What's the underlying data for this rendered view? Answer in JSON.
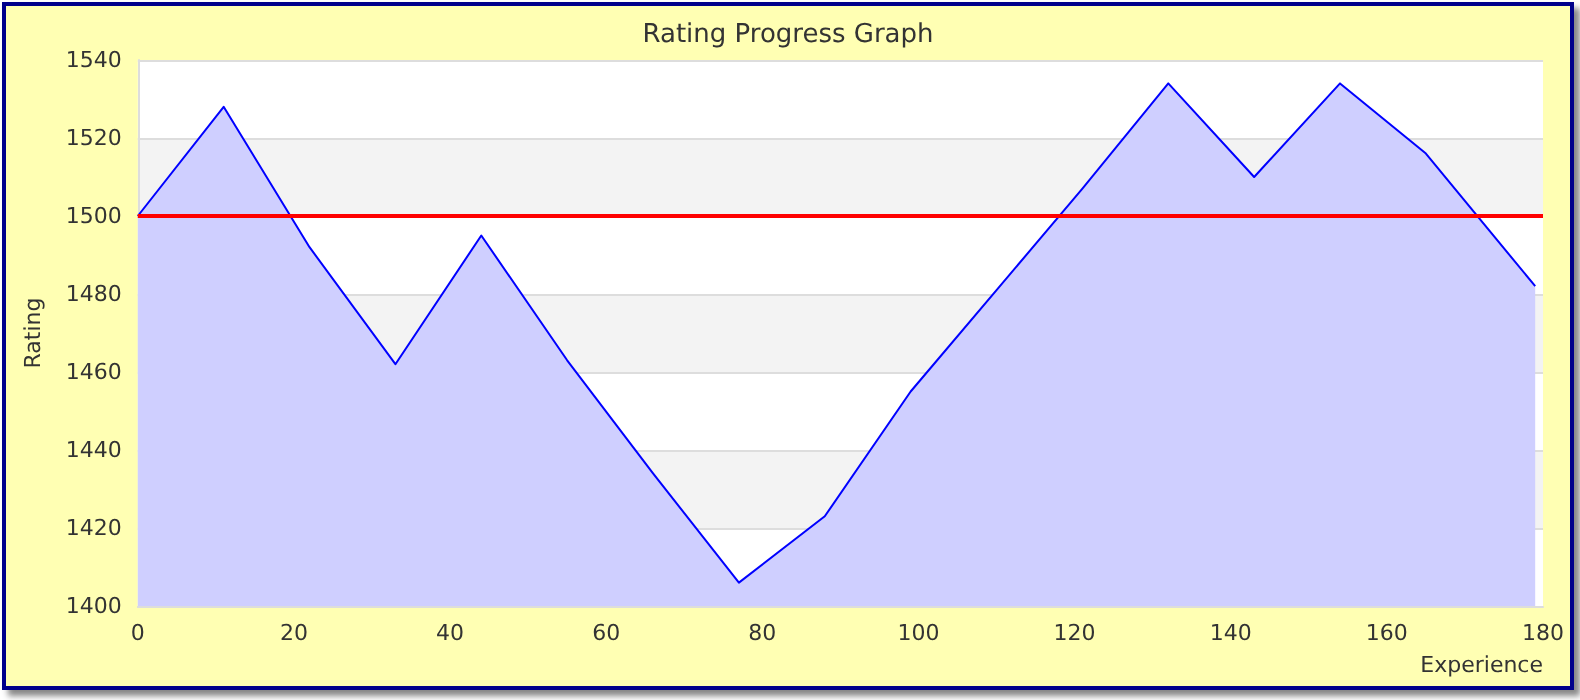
{
  "chart_data": {
    "type": "area",
    "title": "Rating Progress Graph",
    "xlabel": "Experience",
    "ylabel": "Rating",
    "x": [
      0,
      11,
      22,
      33,
      44,
      55,
      66,
      77,
      88,
      99,
      110,
      121,
      132,
      143,
      154,
      165,
      179
    ],
    "series": [
      {
        "color": "#0000ff",
        "values": [
          1500,
          1528,
          1492,
          1462,
          1495,
          1463,
          1434,
          1406,
          1423,
          1455,
          1481,
          1507,
          1534,
          1510,
          1534,
          1516,
          1482
        ]
      }
    ],
    "xlim": [
      0,
      180
    ],
    "xticks": [
      0,
      20,
      40,
      60,
      80,
      100,
      120,
      140,
      160,
      180
    ],
    "ylim": [
      1400,
      1540
    ],
    "yticks": [
      1400,
      1420,
      1440,
      1460,
      1480,
      1500,
      1520,
      1540
    ],
    "grid": "y",
    "marker": "none",
    "line_style": "solid",
    "ref_lines": [
      {
        "axis": "y",
        "value": 1500,
        "color": "#ff0000"
      }
    ]
  }
}
